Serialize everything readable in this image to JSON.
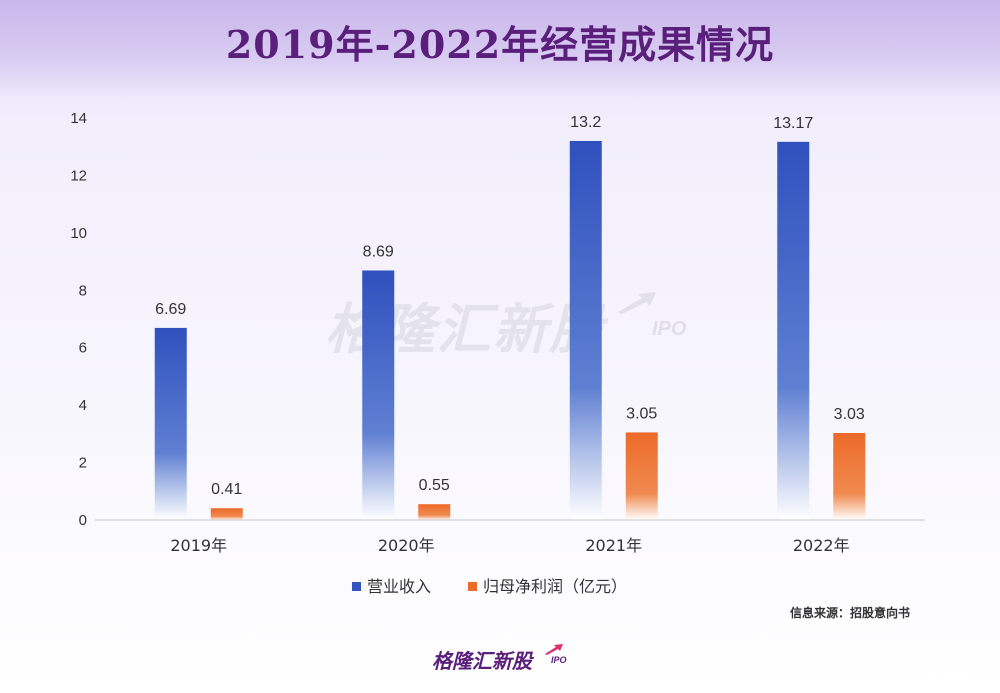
{
  "title": "2019年-2022年经营成果情况",
  "source_note": "信息来源：招股意向书",
  "watermark": {
    "text": "格隆汇新股",
    "suffix": "IPO"
  },
  "footer_logo": {
    "text": "格隆汇新股",
    "suffix": "IPO"
  },
  "corner_mark": {
    "icon": "G",
    "text": "格隆汇"
  },
  "colors": {
    "revenue": "#3154bf",
    "profit": "#ec6b2a",
    "title": "#5a1f7a"
  },
  "chart_data": {
    "type": "bar",
    "title": "2019年-2022年经营成果情况",
    "categories": [
      "2019年",
      "2020年",
      "2021年",
      "2022年"
    ],
    "series": [
      {
        "name": "营业收入",
        "values": [
          6.69,
          8.69,
          13.2,
          13.17
        ],
        "labels": [
          "6.69",
          "8.69",
          "13.2",
          "13.17"
        ]
      },
      {
        "name": "归母净利润（亿元）",
        "values": [
          0.41,
          0.55,
          3.05,
          3.03
        ],
        "labels": [
          "0.41",
          "0.55",
          "3.05",
          "3.03"
        ]
      }
    ],
    "yticks": [
      0,
      2,
      4,
      6,
      8,
      10,
      12,
      14
    ],
    "ylim": [
      0,
      14
    ],
    "grid": false,
    "legend_position": "bottom"
  }
}
